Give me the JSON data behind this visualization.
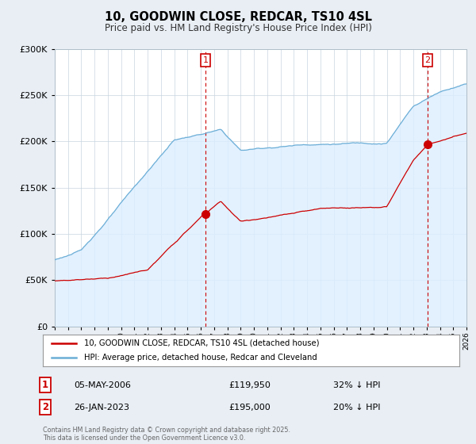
{
  "title": "10, GOODWIN CLOSE, REDCAR, TS10 4SL",
  "subtitle": "Price paid vs. HM Land Registry's House Price Index (HPI)",
  "hpi_color": "#6baed6",
  "hpi_fill_color": "#ddeeff",
  "price_color": "#cc0000",
  "sale1_date": "05-MAY-2006",
  "sale1_price": "£119,950",
  "sale1_hpi": "32% ↓ HPI",
  "sale2_date": "26-JAN-2023",
  "sale2_price": "£195,000",
  "sale2_hpi": "20% ↓ HPI",
  "legend_line1": "10, GOODWIN CLOSE, REDCAR, TS10 4SL (detached house)",
  "legend_line2": "HPI: Average price, detached house, Redcar and Cleveland",
  "footer": "Contains HM Land Registry data © Crown copyright and database right 2025.\nThis data is licensed under the Open Government Licence v3.0.",
  "ylim": [
    0,
    300000
  ],
  "yticks": [
    0,
    50000,
    100000,
    150000,
    200000,
    250000,
    300000
  ],
  "start_year": 1995,
  "end_year": 2026,
  "background_color": "#e8eef4",
  "plot_bg_color": "#ffffff"
}
